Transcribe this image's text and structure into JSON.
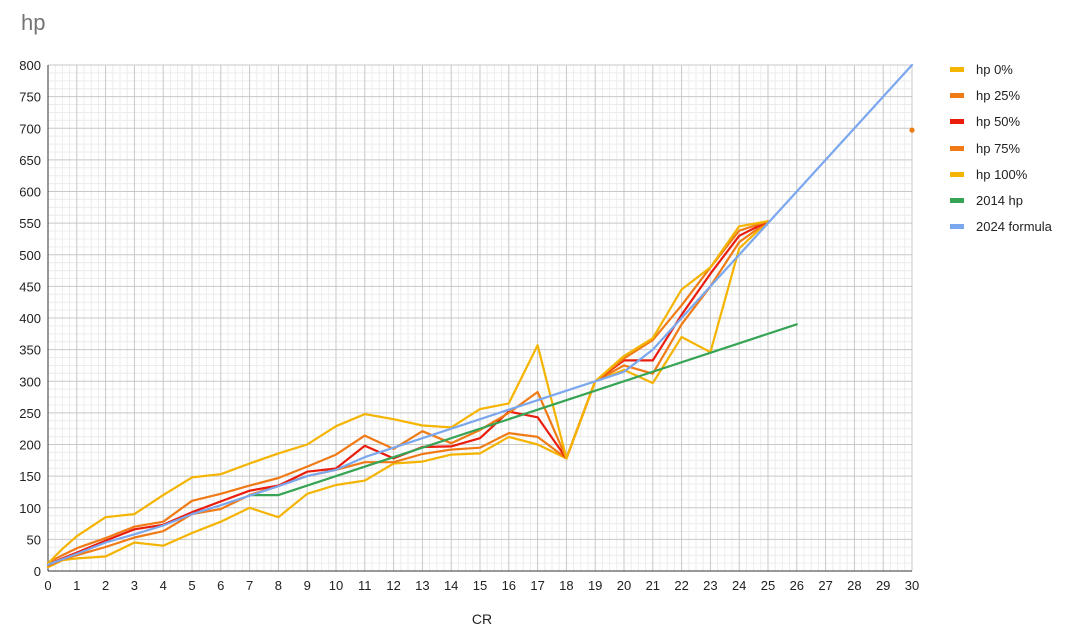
{
  "chart_data": {
    "type": "line",
    "title": "hp",
    "xlabel": "CR",
    "ylabel": "",
    "xlim": [
      0,
      30
    ],
    "ylim": [
      0,
      800
    ],
    "x_ticks": [
      0,
      1,
      2,
      3,
      4,
      5,
      6,
      7,
      8,
      9,
      10,
      11,
      12,
      13,
      14,
      15,
      16,
      17,
      18,
      19,
      20,
      21,
      22,
      23,
      24,
      25,
      26,
      27,
      28,
      29,
      30
    ],
    "y_ticks": [
      0,
      50,
      100,
      150,
      200,
      250,
      300,
      350,
      400,
      450,
      500,
      550,
      600,
      650,
      700,
      750,
      800
    ],
    "grid": true,
    "legend_position": "right",
    "series": [
      {
        "name": "hp 0%",
        "color": "#f4b400",
        "x": [
          0,
          0.5,
          1,
          2,
          3,
          4,
          5,
          6,
          7,
          8,
          9,
          10,
          11,
          12,
          13,
          14,
          15,
          16,
          17,
          18,
          19,
          20,
          21,
          22,
          23,
          24,
          25
        ],
        "y": [
          6,
          17,
          20,
          23,
          45,
          40,
          60,
          78,
          100,
          85,
          122,
          136,
          143,
          170,
          173,
          184,
          186,
          212,
          200,
          178,
          300,
          318,
          297,
          370,
          346,
          510,
          553
        ]
      },
      {
        "name": "hp 25%",
        "color": "#f07b16",
        "x": [
          0,
          0.5,
          1,
          2,
          3,
          4,
          5,
          6,
          7,
          8,
          9,
          10,
          11,
          12,
          13,
          14,
          15,
          16,
          17,
          18,
          19,
          20,
          21,
          22,
          23,
          24,
          25
        ],
        "y": [
          8,
          18,
          25,
          38,
          53,
          63,
          90,
          98,
          120,
          135,
          150,
          160,
          172,
          172,
          185,
          192,
          195,
          218,
          212,
          178,
          300,
          325,
          312,
          390,
          450,
          520,
          553
        ]
      },
      {
        "name": "hp 50%",
        "color": "#ea1d0d",
        "x": [
          0,
          0.5,
          1,
          2,
          3,
          4,
          5,
          6,
          7,
          8,
          9,
          10,
          11,
          12,
          13,
          14,
          15,
          16,
          17,
          18,
          19,
          20,
          21,
          22,
          23,
          24,
          25
        ],
        "y": [
          10,
          20,
          29,
          48,
          66,
          73,
          93,
          110,
          127,
          135,
          157,
          162,
          198,
          178,
          196,
          197,
          210,
          252,
          243,
          178,
          300,
          333,
          333,
          405,
          470,
          530,
          553
        ]
      },
      {
        "name": "hp 75%",
        "color": "#f07b16",
        "x": [
          0,
          0.5,
          1,
          2,
          3,
          4,
          5,
          6,
          7,
          8,
          9,
          10,
          11,
          12,
          13,
          14,
          15,
          16,
          17,
          18,
          19,
          20,
          21,
          22,
          23,
          24,
          25
        ],
        "y": [
          13,
          25,
          36,
          52,
          70,
          78,
          111,
          122,
          135,
          147,
          165,
          184,
          214,
          193,
          221,
          202,
          223,
          250,
          283,
          178,
          300,
          336,
          365,
          420,
          480,
          538,
          553
        ]
      },
      {
        "name": "hp 100%",
        "color": "#f4b400",
        "x": [
          0,
          0.5,
          1,
          2,
          3,
          4,
          5,
          6,
          7,
          8,
          9,
          10,
          11,
          12,
          13,
          14,
          15,
          16,
          17,
          18,
          19,
          20,
          21,
          22,
          23,
          24,
          25
        ],
        "y": [
          12,
          35,
          55,
          85,
          90,
          120,
          148,
          153,
          170,
          186,
          200,
          229,
          248,
          240,
          230,
          227,
          256,
          265,
          357,
          178,
          300,
          340,
          368,
          445,
          480,
          545,
          553
        ]
      },
      {
        "name": "2014 hp",
        "color": "#36a454",
        "x": [
          7,
          8,
          26
        ],
        "y": [
          120,
          120,
          390
        ]
      },
      {
        "name": "2024 formula",
        "color": "#7ba7ef",
        "x": [
          0,
          1,
          2,
          3,
          4,
          5,
          6,
          7,
          8,
          9,
          10,
          11,
          12,
          13,
          14,
          15,
          16,
          17,
          18,
          19,
          20,
          21,
          22,
          23,
          24,
          25,
          26,
          27,
          28,
          29,
          30
        ],
        "y": [
          10,
          27,
          45,
          58,
          72,
          90,
          104,
          119,
          134,
          150,
          160,
          180,
          195,
          210,
          225,
          240,
          255,
          270,
          285,
          300,
          315,
          350,
          400,
          450,
          500,
          550,
          600,
          650,
          700,
          750,
          800
        ]
      }
    ],
    "points": [
      {
        "x": 30,
        "y": 697,
        "color": "#f07b16"
      }
    ]
  }
}
